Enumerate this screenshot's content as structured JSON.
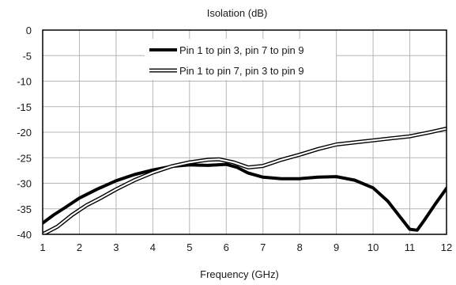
{
  "chart_data": {
    "type": "line",
    "title": "",
    "ylabel": "Isolation (dB)",
    "xlabel": "Frequency (GHz)",
    "xlim": [
      1,
      12
    ],
    "ylim": [
      -40,
      0
    ],
    "x_ticks": [
      "1",
      "2",
      "3",
      "4",
      "5",
      "6",
      "7",
      "8",
      "9",
      "10",
      "11",
      "12"
    ],
    "y_ticks": [
      "0",
      "-5",
      "-10",
      "-15",
      "-20",
      "-25",
      "-30",
      "-35",
      "-40"
    ],
    "grid": true,
    "legend_position": "top-center",
    "series": [
      {
        "name": "Pin 1 to pin 3, pin 7 to pin 9",
        "style": "thick-black",
        "color": "#000000",
        "points": [
          [
            1.0,
            -37.8
          ],
          [
            1.3,
            -36.2
          ],
          [
            1.6,
            -34.8
          ],
          [
            2.0,
            -32.9
          ],
          [
            2.5,
            -31.1
          ],
          [
            3.0,
            -29.5
          ],
          [
            3.5,
            -28.3
          ],
          [
            4.0,
            -27.4
          ],
          [
            4.5,
            -26.7
          ],
          [
            5.0,
            -26.4
          ],
          [
            5.5,
            -26.5
          ],
          [
            6.0,
            -26.3
          ],
          [
            6.3,
            -26.9
          ],
          [
            6.6,
            -28.0
          ],
          [
            7.0,
            -28.8
          ],
          [
            7.5,
            -29.1
          ],
          [
            8.0,
            -29.1
          ],
          [
            8.5,
            -28.8
          ],
          [
            9.0,
            -28.7
          ],
          [
            9.5,
            -29.4
          ],
          [
            10.0,
            -30.9
          ],
          [
            10.4,
            -33.5
          ],
          [
            10.8,
            -37.2
          ],
          [
            11.0,
            -39.0
          ],
          [
            11.2,
            -39.2
          ],
          [
            11.4,
            -37.2
          ],
          [
            11.7,
            -34.0
          ],
          [
            12.0,
            -31.0
          ]
        ]
      },
      {
        "name": "Pin 1 to pin 7, pin 3 to pin 9",
        "style": "double-outline",
        "color": "#000000",
        "points": [
          [
            1.0,
            -40.0
          ],
          [
            1.4,
            -38.5
          ],
          [
            1.8,
            -36.2
          ],
          [
            2.2,
            -34.3
          ],
          [
            2.6,
            -32.8
          ],
          [
            3.0,
            -31.2
          ],
          [
            3.5,
            -29.4
          ],
          [
            4.0,
            -27.9
          ],
          [
            4.5,
            -26.7
          ],
          [
            5.0,
            -25.9
          ],
          [
            5.5,
            -25.4
          ],
          [
            5.8,
            -25.3
          ],
          [
            6.2,
            -25.9
          ],
          [
            6.6,
            -26.9
          ],
          [
            7.0,
            -26.6
          ],
          [
            7.5,
            -25.4
          ],
          [
            8.0,
            -24.4
          ],
          [
            8.5,
            -23.3
          ],
          [
            9.0,
            -22.4
          ],
          [
            9.5,
            -22.0
          ],
          [
            10.0,
            -21.6
          ],
          [
            10.5,
            -21.2
          ],
          [
            11.0,
            -20.8
          ],
          [
            11.5,
            -20.1
          ],
          [
            12.0,
            -19.3
          ]
        ]
      }
    ]
  }
}
